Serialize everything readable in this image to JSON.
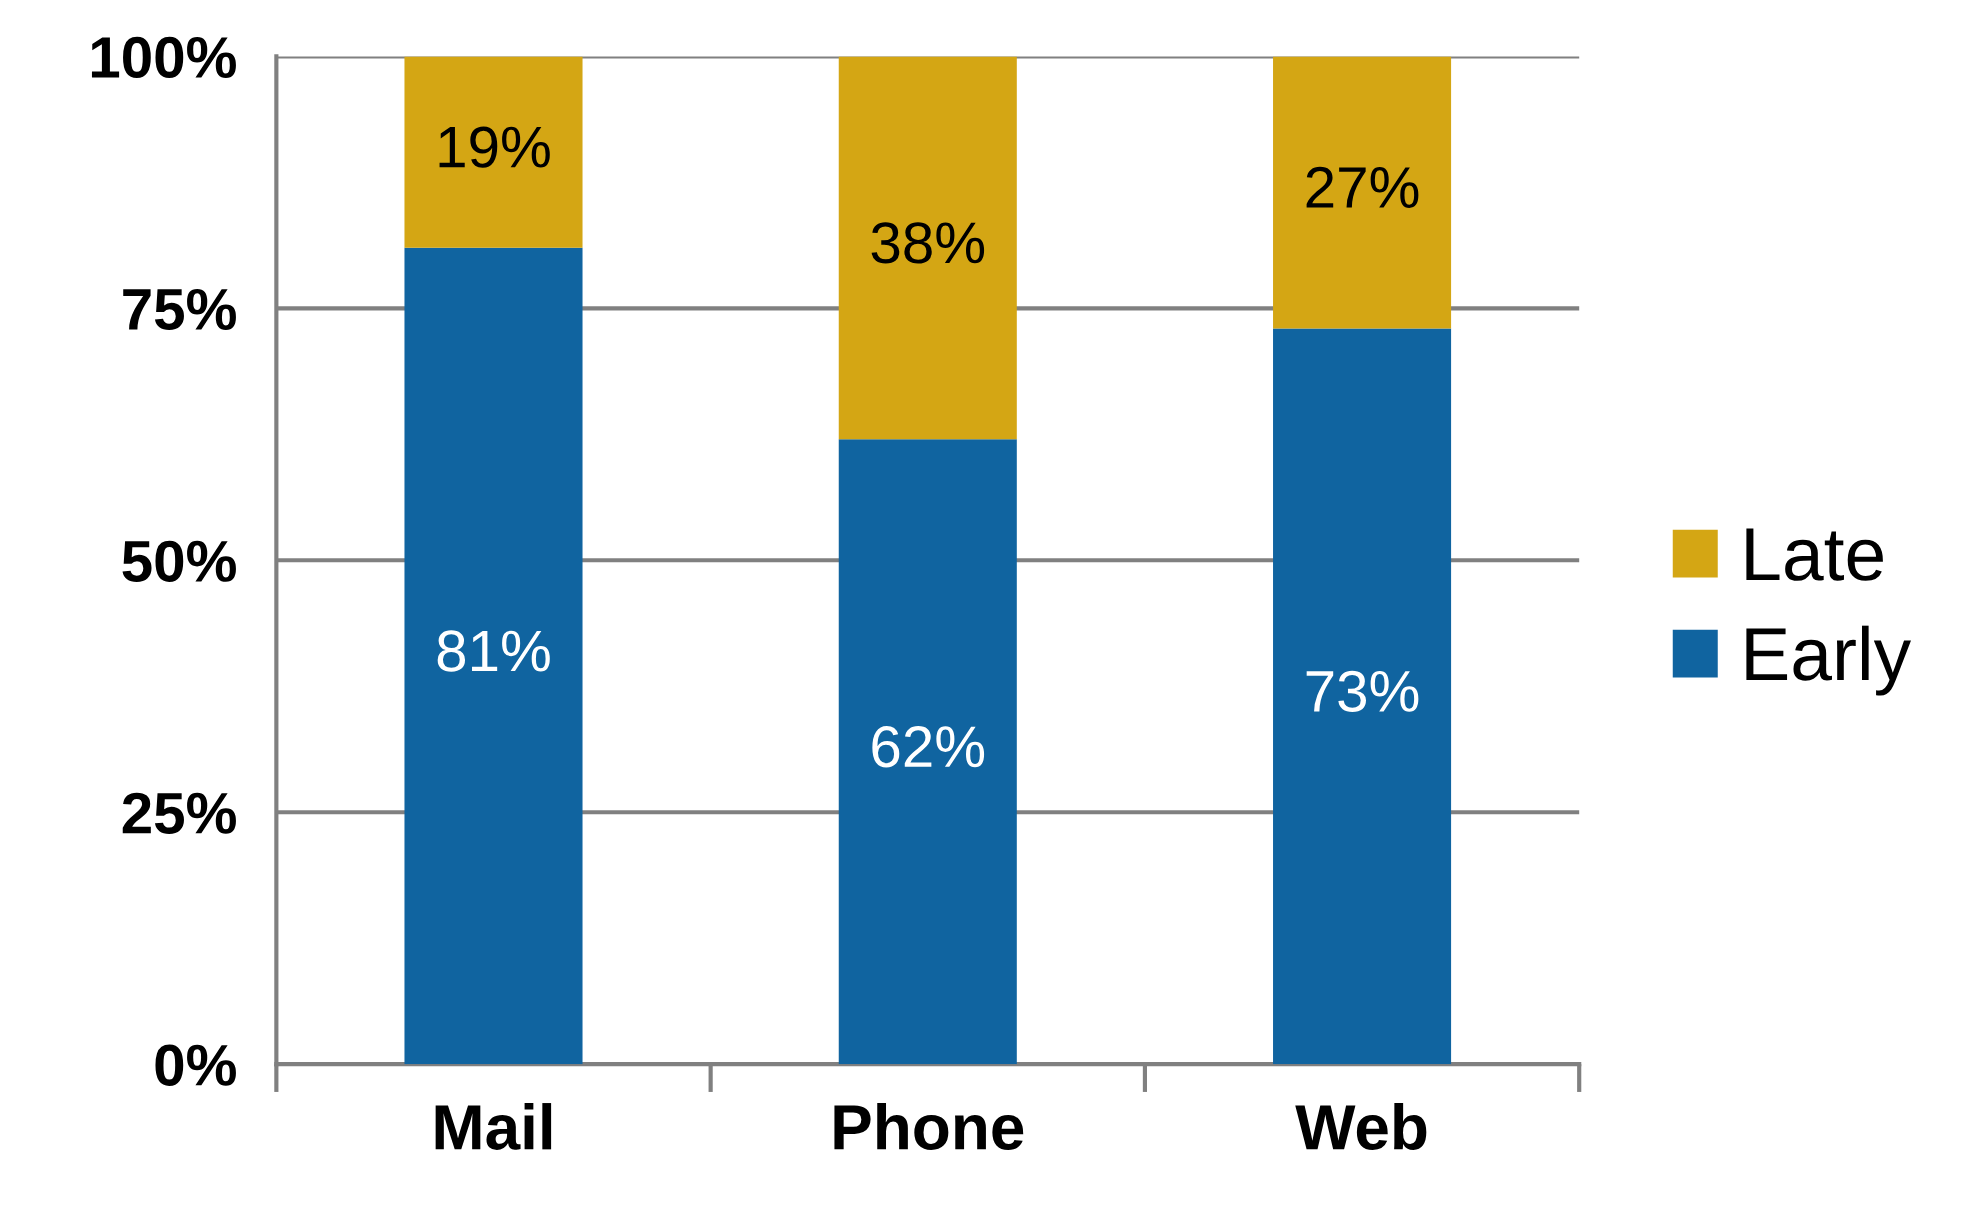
{
  "chart_data": {
    "type": "bar",
    "stacked": true,
    "categories": [
      "Mail",
      "Phone",
      "Web"
    ],
    "series": [
      {
        "name": "Early",
        "color": "#1064a0",
        "values": [
          81,
          62,
          73
        ],
        "value_labels": [
          "81%",
          "62%",
          "73%"
        ]
      },
      {
        "name": "Late",
        "color": "#d4a614",
        "values": [
          19,
          38,
          27
        ],
        "value_labels": [
          "19%",
          "38%",
          "27%"
        ]
      }
    ],
    "ylim": [
      0,
      100
    ],
    "yticks": [
      {
        "value": 0,
        "label": "0%"
      },
      {
        "value": 25,
        "label": "25%"
      },
      {
        "value": 50,
        "label": "50%"
      },
      {
        "value": 75,
        "label": "75%"
      },
      {
        "value": 100,
        "label": "100%"
      }
    ],
    "grid": "y",
    "legend": "right"
  }
}
